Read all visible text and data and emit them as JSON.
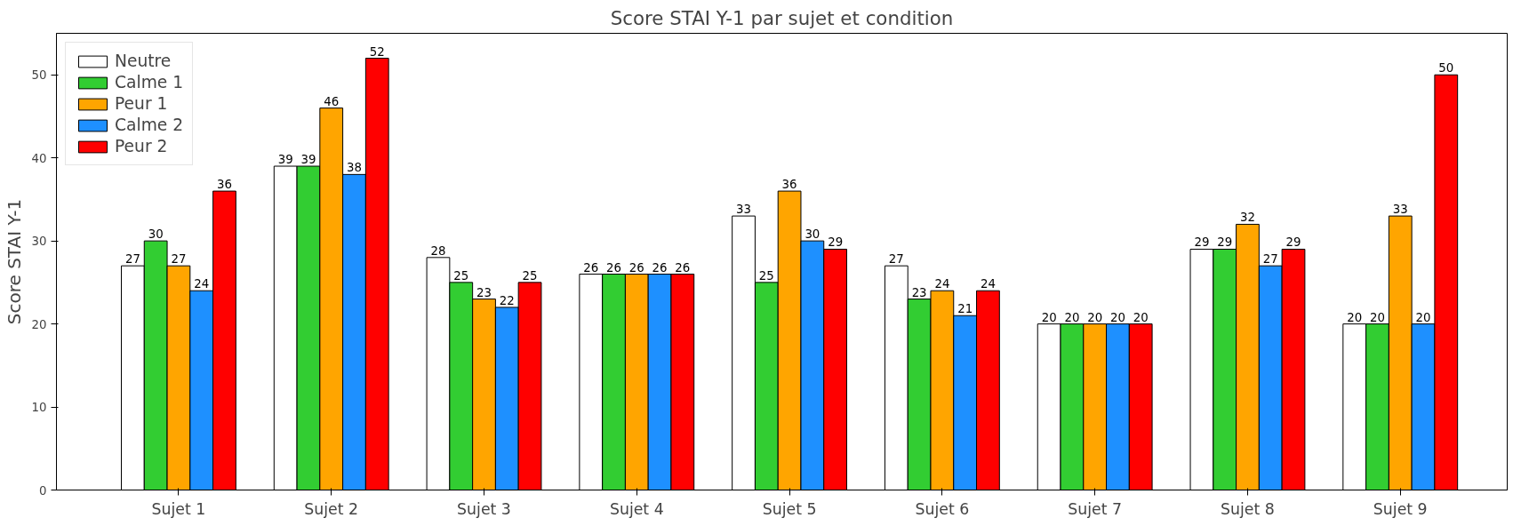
{
  "chart_data": {
    "type": "bar",
    "title": "Score STAI Y-1 par sujet et condition",
    "ylabel": "Score STAI Y-1",
    "categories": [
      "Sujet 1",
      "Sujet 2",
      "Sujet 3",
      "Sujet 4",
      "Sujet 5",
      "Sujet 6",
      "Sujet 7",
      "Sujet 8",
      "Sujet 9"
    ],
    "series": [
      {
        "name": "Neutre",
        "color": "#ffffff",
        "values": [
          27,
          39,
          28,
          26,
          33,
          27,
          20,
          29,
          20
        ]
      },
      {
        "name": "Calme 1",
        "color": "#32cd32",
        "values": [
          30,
          39,
          25,
          26,
          25,
          23,
          20,
          29,
          20
        ]
      },
      {
        "name": "Peur 1",
        "color": "#ffa500",
        "values": [
          27,
          46,
          23,
          26,
          36,
          24,
          20,
          32,
          33
        ]
      },
      {
        "name": "Calme 2",
        "color": "#1e90ff",
        "values": [
          24,
          38,
          22,
          26,
          30,
          21,
          20,
          27,
          20
        ]
      },
      {
        "name": "Peur 2",
        "color": "#ff0000",
        "values": [
          36,
          52,
          25,
          26,
          29,
          24,
          20,
          29,
          50
        ]
      }
    ],
    "ylim": [
      0,
      55
    ],
    "yticks": [
      0,
      10,
      20,
      30,
      40,
      50
    ],
    "grid": false,
    "legend": "top left",
    "data_labels": true
  }
}
